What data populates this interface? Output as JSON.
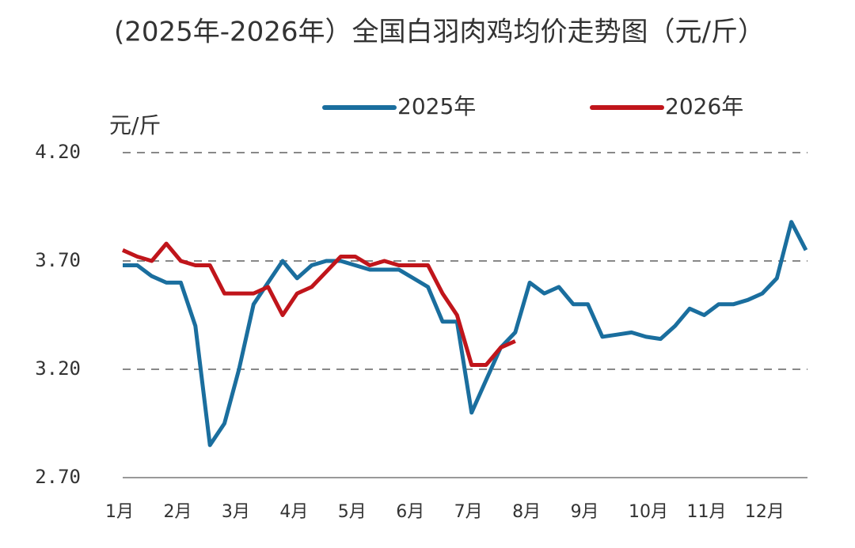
{
  "chart_data": {
    "type": "line",
    "title": "(2025年-2026年）全国白羽肉鸡均价走势图（元/斤）",
    "y_label": "元/斤",
    "categories": [
      "1月",
      null,
      null,
      null,
      "2月",
      null,
      null,
      null,
      "3月",
      null,
      null,
      null,
      "4月",
      null,
      null,
      null,
      "5月",
      null,
      null,
      null,
      "6月",
      null,
      null,
      null,
      "7月",
      null,
      null,
      null,
      "8月",
      null,
      null,
      null,
      "9月",
      null,
      null,
      null,
      "10月",
      null,
      null,
      null,
      "11月",
      null,
      null,
      null,
      "12月",
      null,
      null,
      null
    ],
    "series": [
      {
        "name": "2025年",
        "color": "#1a6e9e",
        "values": [
          3.68,
          3.68,
          3.63,
          3.6,
          3.6,
          3.4,
          2.85,
          2.95,
          3.2,
          3.5,
          3.6,
          3.7,
          3.62,
          3.68,
          3.7,
          3.7,
          3.68,
          3.66,
          3.66,
          3.66,
          3.62,
          3.58,
          3.42,
          3.42,
          3.0,
          3.15,
          3.3,
          3.37,
          3.6,
          3.55,
          3.58,
          3.5,
          3.5,
          3.35,
          3.36,
          3.37,
          3.35,
          3.34,
          3.4,
          3.48,
          3.45,
          3.5,
          3.5,
          3.52,
          3.55,
          3.62,
          3.88,
          3.75
        ]
      },
      {
        "name": "2026年",
        "color": "#c0151b",
        "values": [
          3.75,
          3.72,
          3.7,
          3.78,
          3.7,
          3.68,
          3.68,
          3.55,
          3.55,
          3.55,
          3.58,
          3.45,
          3.55,
          3.58,
          3.65,
          3.72,
          3.72,
          3.68,
          3.7,
          3.68,
          3.68,
          3.68,
          3.55,
          3.45,
          3.22,
          3.22,
          3.3,
          3.33,
          null,
          null,
          null,
          null,
          null,
          null,
          null,
          null,
          null,
          null,
          null,
          null,
          null,
          null,
          null,
          null,
          null,
          null,
          null,
          null
        ]
      }
    ],
    "ylim": [
      2.7,
      4.2
    ],
    "yticks": [
      {
        "value": 2.7,
        "label": "2.70"
      },
      {
        "value": 3.2,
        "label": "3.20"
      },
      {
        "value": 3.7,
        "label": "3.70"
      },
      {
        "value": 4.2,
        "label": "4.20"
      }
    ],
    "grid": true
  }
}
